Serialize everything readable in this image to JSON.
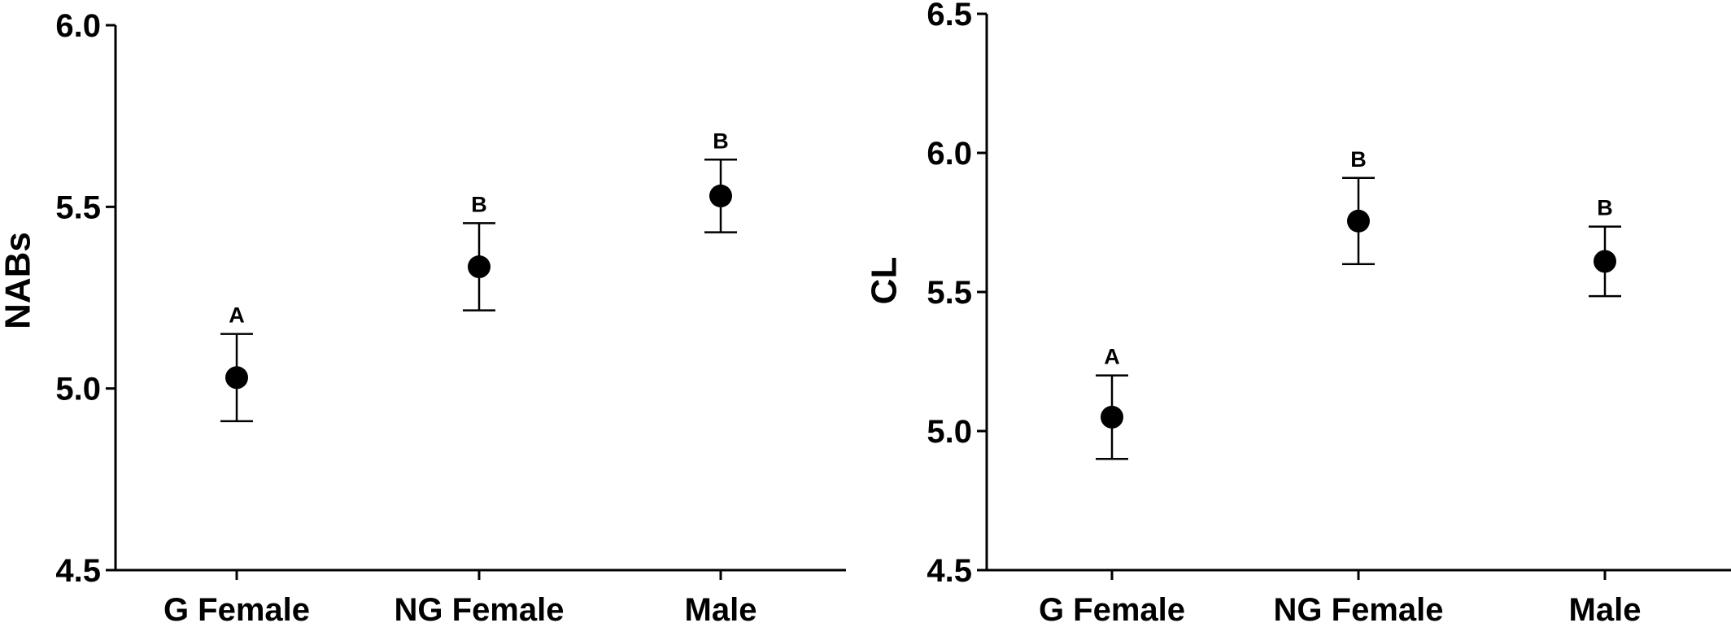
{
  "chart_data": [
    {
      "type": "scatter",
      "title": "",
      "xlabel": "",
      "ylabel": "NABs",
      "categories": [
        "G Female",
        "NG Female",
        "Male"
      ],
      "ylim": [
        4.5,
        6.0
      ],
      "yticks": [
        4.5,
        5.0,
        5.5,
        6.0
      ],
      "ytick_labels": [
        "4.5",
        "5.0",
        "5.5",
        "6.0"
      ],
      "grid": false,
      "series": [
        {
          "values": [
            5.03,
            5.335,
            5.53
          ],
          "error_upper": [
            5.15,
            5.455,
            5.63
          ],
          "error_lower": [
            4.91,
            5.215,
            5.43
          ],
          "significance_labels": [
            "A",
            "B",
            "B"
          ]
        }
      ]
    },
    {
      "type": "scatter",
      "title": "",
      "xlabel": "",
      "ylabel": "CL",
      "categories": [
        "G Female",
        "NG Female",
        "Male"
      ],
      "ylim": [
        4.5,
        6.5
      ],
      "yticks": [
        4.5,
        5.0,
        5.5,
        6.0,
        6.5
      ],
      "ytick_labels": [
        "4.5",
        "5.0",
        "5.5",
        "6.0",
        "6.5"
      ],
      "grid": false,
      "series": [
        {
          "values": [
            5.05,
            5.755,
            5.61
          ],
          "error_upper": [
            5.2,
            5.91,
            5.735
          ],
          "error_lower": [
            4.9,
            5.6,
            5.485
          ],
          "significance_labels": [
            "A",
            "B",
            "B"
          ]
        }
      ]
    }
  ]
}
